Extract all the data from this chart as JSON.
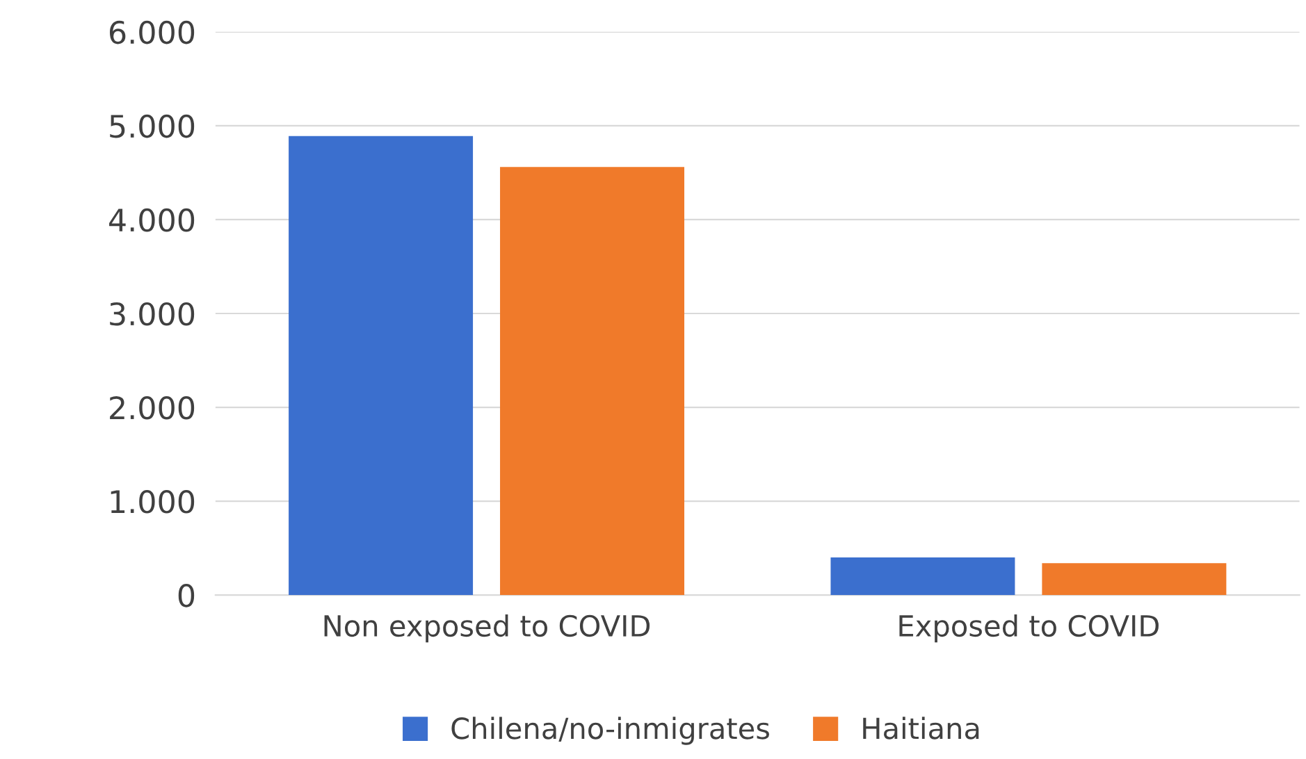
{
  "chart_data": {
    "type": "bar",
    "categories": [
      "Non exposed to COVID",
      "Exposed to COVID"
    ],
    "series": [
      {
        "name": "Chilena/no-inmigrates",
        "color": "#3b6fce",
        "values": [
          4890,
          400
        ]
      },
      {
        "name": "Haitiana",
        "color": "#f07a2a",
        "values": [
          4560,
          340
        ]
      }
    ],
    "ylim": [
      0,
      6000
    ],
    "yticks": [
      0,
      {
        "value": 1000,
        "label": "1.000"
      },
      {
        "value": 2000,
        "label": "2.000"
      },
      {
        "value": 3000,
        "label": "3.000"
      },
      {
        "value": 4000,
        "label": "4.000"
      },
      {
        "value": 5000,
        "label": "5.000"
      },
      {
        "value": 6000,
        "label": "6.000"
      }
    ],
    "grid": "y",
    "legend": "bottom"
  }
}
